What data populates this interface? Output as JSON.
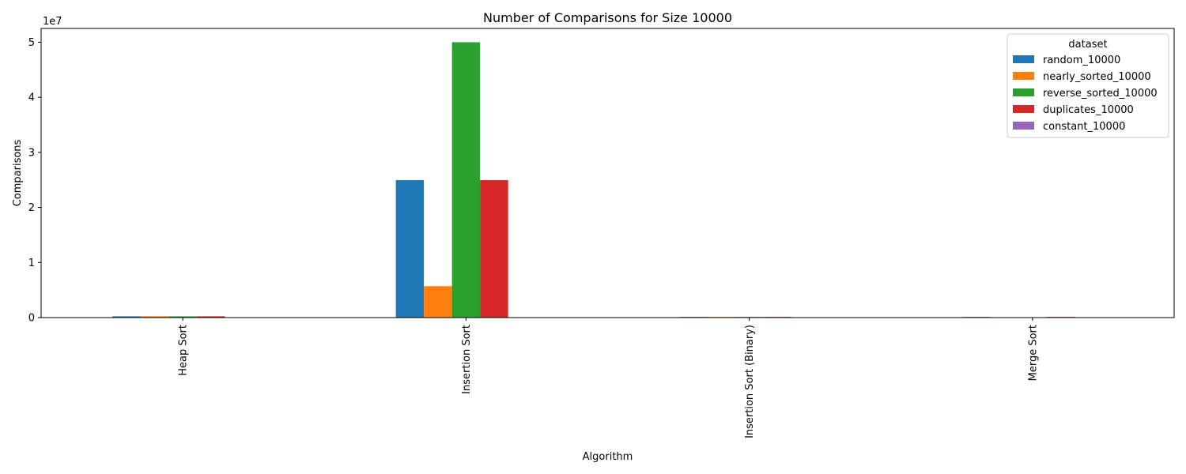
{
  "chart_data": {
    "type": "bar",
    "title": "Number of Comparisons for Size 10000",
    "xlabel": "Algorithm",
    "ylabel": "Comparisons",
    "y_offset_label": "1e7",
    "ylim": [
      0,
      52500000
    ],
    "yticks": [
      0,
      10000000,
      20000000,
      30000000,
      40000000,
      50000000
    ],
    "ytick_labels": [
      "0",
      "1",
      "2",
      "3",
      "4",
      "5"
    ],
    "categories": [
      "Heap Sort",
      "Insertion Sort",
      "Insertion Sort (Binary)",
      "Merge Sort"
    ],
    "legend_title": "dataset",
    "legend_position": "top-right",
    "grid": false,
    "series": [
      {
        "name": "random_10000",
        "color": "#1f77b4",
        "values": [
          235000,
          24950000,
          119000,
          120000
        ]
      },
      {
        "name": "nearly_sorted_10000",
        "color": "#ff7f0e",
        "values": [
          244000,
          5700000,
          114000,
          75000
        ]
      },
      {
        "name": "reverse_sorted_10000",
        "color": "#2ca02c",
        "values": [
          226000,
          49995000,
          114000,
          70000
        ]
      },
      {
        "name": "duplicates_10000",
        "color": "#d62728",
        "values": [
          233000,
          24950000,
          119000,
          120000
        ]
      },
      {
        "name": "constant_10000",
        "color": "#9467bd",
        "values": [
          20000,
          10000,
          10000,
          70000
        ]
      }
    ]
  }
}
